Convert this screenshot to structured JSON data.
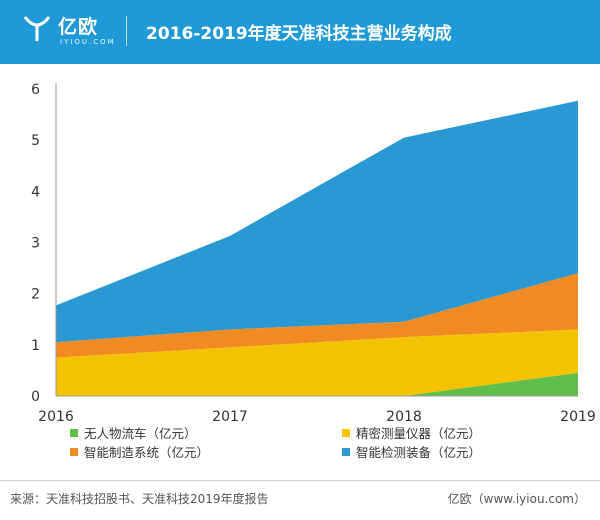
{
  "header": {
    "logo_text": "亿欧",
    "logo_sub": "IYIOU.COM",
    "title": "2016-2019年度天准科技主营业务构成"
  },
  "colors": {
    "header_bg": "#1f9ad6",
    "series": [
      "#5fbf4a",
      "#f3c200",
      "#f18a22",
      "#2a98d3"
    ]
  },
  "chart_data": {
    "type": "area",
    "stacked": true,
    "title": "2016-2019年度天准科技主营业务构成",
    "x": [
      "2016",
      "2017",
      "2018",
      "2019"
    ],
    "ylim": [
      0,
      6
    ],
    "yticks": [
      "0",
      "1",
      "2",
      "3",
      "4",
      "5",
      "6"
    ],
    "grid": false,
    "legend_position": "bottom",
    "series": [
      {
        "name": "无人物流车（亿元）",
        "values": [
          0,
          0,
          0,
          0.45
        ]
      },
      {
        "name": "精密测量仪器（亿元）",
        "values": [
          0.75,
          0.95,
          1.15,
          0.85
        ]
      },
      {
        "name": "智能制造系统（亿元）",
        "values": [
          0.3,
          0.35,
          0.3,
          1.1
        ]
      },
      {
        "name": "智能检测装备（亿元）",
        "values": [
          0.72,
          1.83,
          3.6,
          3.37
        ]
      }
    ]
  },
  "footer": {
    "source": "来源：天准科技招股书、天准科技2019年度报告",
    "brand": "亿欧（www.iyiou.com）"
  }
}
